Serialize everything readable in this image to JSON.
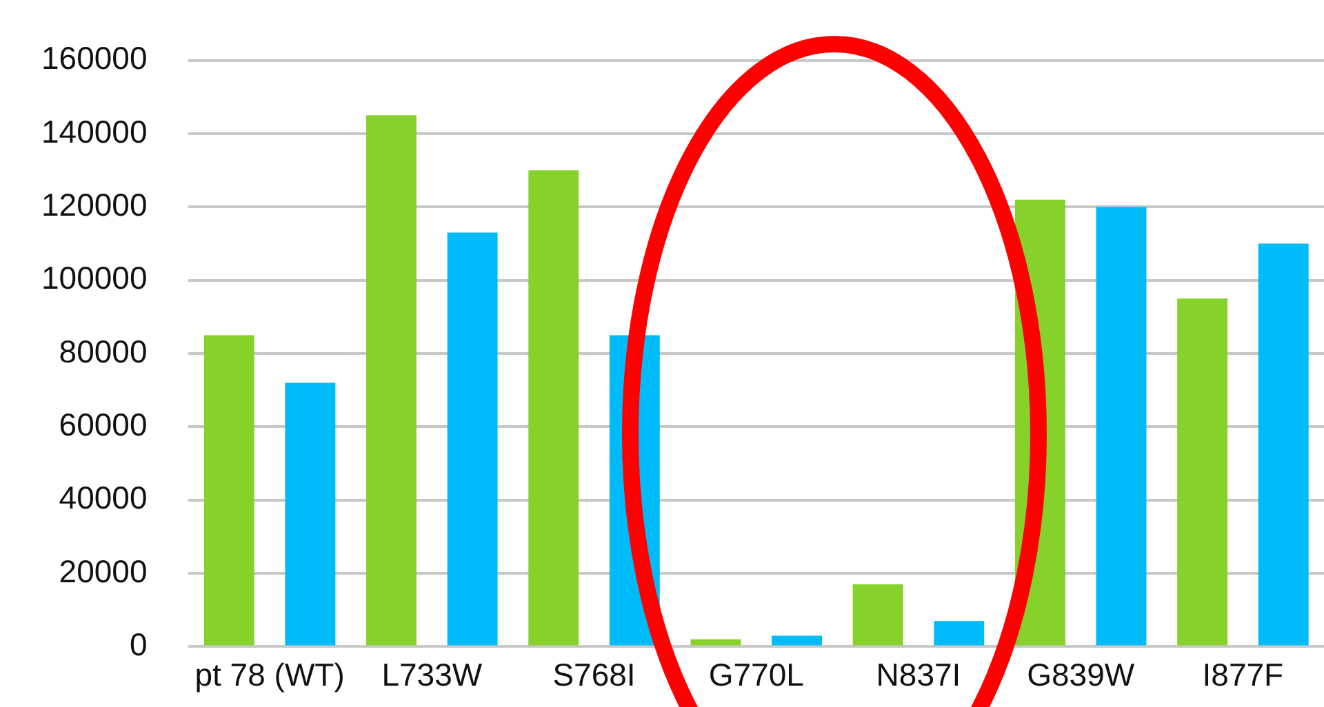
{
  "chart_data": {
    "type": "bar",
    "categories": [
      "pt 78 (WT)",
      "L733W",
      "S768I",
      "G770L",
      "N837I",
      "G839W",
      "I877F"
    ],
    "series": [
      {
        "color": "#86d12a",
        "values": [
          85000,
          145000,
          130000,
          2000,
          17000,
          122000,
          95000
        ]
      },
      {
        "color": "#00bbf9",
        "values": [
          72000,
          113000,
          85000,
          3000,
          7000,
          120000,
          110000
        ]
      }
    ],
    "ylim": [
      0,
      160000
    ],
    "yticks": [
      0,
      20000,
      40000,
      60000,
      80000,
      100000,
      120000,
      140000,
      160000
    ],
    "grid": "y",
    "legend": false
  }
}
